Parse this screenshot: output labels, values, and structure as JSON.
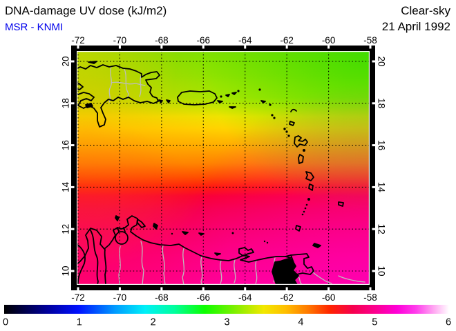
{
  "header": {
    "title": "DNA-damage UV dose (kJ/m2)",
    "subtitle": "MSR - KNMI",
    "condition": "Clear-sky",
    "date": "21 April 1992"
  },
  "colors": {
    "subtitle_blue": "#0000EB",
    "coastline_black": "#000000",
    "inland_border_gray": "#BDBDBD",
    "frame_black": "#000000",
    "tick_white": "#FFFFFF"
  },
  "map": {
    "lon_tick_labels": [
      "-72",
      "-70",
      "-68",
      "-66",
      "-64",
      "-62",
      "-60",
      "-58"
    ],
    "lat_tick_labels": [
      "20",
      "18",
      "16",
      "14",
      "12",
      "10"
    ]
  },
  "colorbar": {
    "tick_labels": [
      "0",
      "1",
      "2",
      "3",
      "4",
      "5",
      "6"
    ],
    "stops": [
      {
        "v": 0.0,
        "c": "#000000"
      },
      {
        "v": 0.6,
        "c": "#0000A0"
      },
      {
        "v": 1.0,
        "c": "#0010FF"
      },
      {
        "v": 1.5,
        "c": "#009CFF"
      },
      {
        "v": 1.9,
        "c": "#00F0F8"
      },
      {
        "v": 2.3,
        "c": "#00FF9C"
      },
      {
        "v": 2.7,
        "c": "#0CFF00"
      },
      {
        "v": 3.1,
        "c": "#7CF000"
      },
      {
        "v": 3.5,
        "c": "#F2E800"
      },
      {
        "v": 3.8,
        "c": "#FFBE00"
      },
      {
        "v": 4.1,
        "c": "#FF7800"
      },
      {
        "v": 4.4,
        "c": "#FF2300"
      },
      {
        "v": 4.7,
        "c": "#F6004E"
      },
      {
        "v": 5.0,
        "c": "#FC008E"
      },
      {
        "v": 5.3,
        "c": "#FF00D8"
      },
      {
        "v": 5.55,
        "c": "#FF3CEC"
      },
      {
        "v": 5.8,
        "c": "#FFAAF2"
      },
      {
        "v": 6.0,
        "c": "#FFFFFF"
      }
    ]
  },
  "chart_data": {
    "type": "heatmap",
    "title": "DNA-damage UV dose (kJ/m2)",
    "annotations": [
      "MSR - KNMI",
      "Clear-sky",
      "21 April 1992"
    ],
    "x": {
      "tick_labels": [
        -72,
        -70,
        -68,
        -66,
        -64,
        -62,
        -60,
        -58
      ],
      "range": [
        -72.1,
        -58.0
      ],
      "unit": "degrees longitude"
    },
    "y": {
      "tick_labels": [
        20,
        18,
        16,
        14,
        12,
        10
      ],
      "range": [
        9.8,
        20.5
      ],
      "unit": "degrees latitude"
    },
    "colorbar": {
      "tick_labels": [
        0,
        1,
        2,
        3,
        4,
        5,
        6
      ],
      "range": [
        0,
        6
      ],
      "unit": "kJ/m2"
    },
    "dose_profile_by_latitude": {
      "lat": [
        20,
        18,
        16,
        14,
        12,
        10
      ],
      "dose_kj_m2": [
        3.1,
        3.45,
        3.95,
        4.6,
        4.85,
        5.05
      ]
    },
    "pattern_notes": "Dose increases from north (green, ~3 kJ/m2) to south (magenta, ~5 kJ/m2); slightly higher in northwest near Hispaniola, slightly higher in southeast near Trinidad.",
    "legend_position": "bottom full-width colorbar",
    "grid": "dotted graticule every 2 degrees"
  }
}
